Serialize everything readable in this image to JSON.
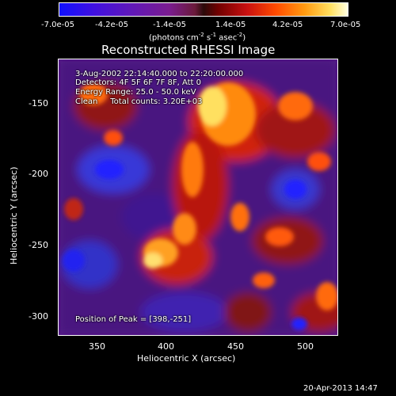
{
  "colorbar": {
    "ticks": [
      "-7.0e-05",
      "-4.2e-05",
      "-1.4e-05",
      "1.4e-05",
      "4.2e-05",
      "7.0e-05"
    ],
    "units_label_prefix": "(photons cm",
    "units_exp1": "-2",
    "units_mid": " s",
    "units_exp2": "-1",
    "units_mid2": " asec",
    "units_exp3": "-2",
    "units_suffix": ")"
  },
  "plot": {
    "title": "Reconstructed RHESSI Image",
    "xlabel": "Heliocentric X (arcsec)",
    "ylabel": "Heliocentric Y (arcsec)",
    "xticks": [
      "350",
      "400",
      "450",
      "500"
    ],
    "yticks": [
      "-150",
      "-200",
      "-250",
      "-300"
    ],
    "annotations": [
      "3-Aug-2002 22:14:40.000 to 22:20:00.000",
      "Detectors: 4F 5F 6F 7F 8F, Att 0",
      "Energy Range: 25.0 - 50.0 keV",
      "Clean     Total counts: 3.20E+03"
    ],
    "peak_label": "Position of Peak = [398,-251]"
  },
  "footer": {
    "timestamp": "20-Apr-2013 14:47"
  },
  "colors": {
    "bg": "#000000",
    "text": "#ffffff",
    "cool": "#1a1aff",
    "hot": "#ffff40"
  }
}
